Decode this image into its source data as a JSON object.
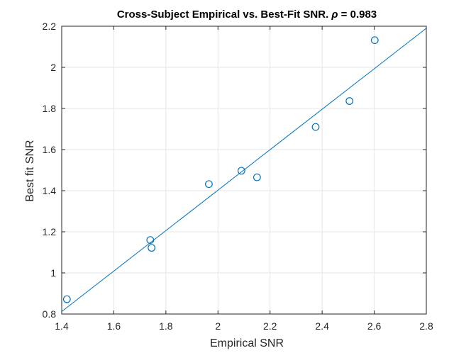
{
  "chart_data": {
    "type": "scatter",
    "title": "Cross-Subject Empirical vs. Best-Fit SNR. ",
    "title_symbol": "ρ",
    "title_value": " = 0.983",
    "xlabel": "Empirical SNR",
    "ylabel": "Best fit SNR",
    "xlim": [
      1.4,
      2.8
    ],
    "ylim": [
      0.8,
      2.2
    ],
    "xticks": [
      1.4,
      1.6,
      1.8,
      2,
      2.2,
      2.4,
      2.6,
      2.8
    ],
    "yticks": [
      0.8,
      1,
      1.2,
      1.4,
      1.6,
      1.8,
      2,
      2.2
    ],
    "xtick_labels": [
      "1.4",
      "1.6",
      "1.8",
      "2",
      "2.2",
      "2.4",
      "2.6",
      "2.8"
    ],
    "ytick_labels": [
      "0.8",
      "1",
      "1.2",
      "1.4",
      "1.6",
      "1.8",
      "2",
      "2.2"
    ],
    "grid": true,
    "points": [
      {
        "x": 1.42,
        "y": 0.872
      },
      {
        "x": 1.74,
        "y": 1.16
      },
      {
        "x": 1.745,
        "y": 1.122
      },
      {
        "x": 1.965,
        "y": 1.432
      },
      {
        "x": 2.09,
        "y": 1.497
      },
      {
        "x": 2.15,
        "y": 1.465
      },
      {
        "x": 2.375,
        "y": 1.71
      },
      {
        "x": 2.505,
        "y": 1.836
      },
      {
        "x": 2.602,
        "y": 2.132
      }
    ],
    "fit_line": {
      "x": [
        1.4,
        2.8
      ],
      "y": [
        0.812,
        2.19
      ]
    },
    "colors": {
      "series": "#0072BD",
      "grid": "#e6e6e6",
      "axis": "#262626"
    }
  }
}
